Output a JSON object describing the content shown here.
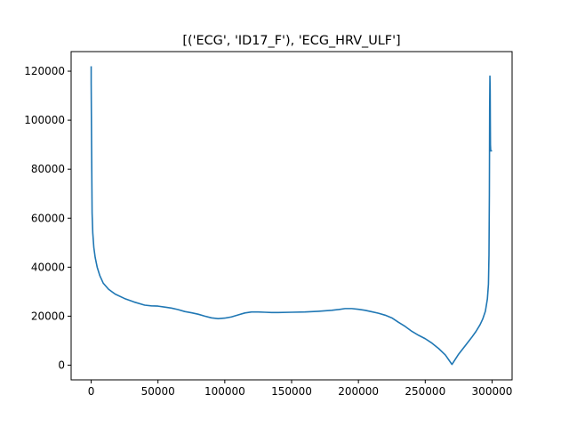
{
  "chart_data": {
    "type": "line",
    "title": "[('ECG', 'ID17_F'), 'ECG_HRV_ULF']",
    "xlabel": "",
    "ylabel": "",
    "xlim": [
      -15000,
      315000
    ],
    "ylim": [
      -6000,
      128000
    ],
    "grid": false,
    "x_ticks": [
      0,
      50000,
      100000,
      150000,
      200000,
      250000,
      300000
    ],
    "x_tick_labels": [
      "0",
      "50000",
      "100000",
      "150000",
      "200000",
      "250000",
      "300000"
    ],
    "y_ticks": [
      0,
      20000,
      40000,
      60000,
      80000,
      100000,
      120000
    ],
    "y_tick_labels": [
      "0",
      "20000",
      "40000",
      "60000",
      "80000",
      "100000",
      "120000"
    ],
    "series": [
      {
        "color": "#1f77b4",
        "x": [
          0,
          0,
          300,
          700,
          1200,
          2000,
          3000,
          4500,
          6500,
          9000,
          13000,
          18000,
          25000,
          32000,
          40000,
          45000,
          50000,
          55000,
          60000,
          65000,
          70000,
          75000,
          80000,
          85000,
          90000,
          95000,
          100000,
          105000,
          110000,
          115000,
          120000,
          125000,
          130000,
          135000,
          140000,
          150000,
          160000,
          170000,
          180000,
          185000,
          190000,
          195000,
          200000,
          205000,
          210000,
          215000,
          220000,
          225000,
          230000,
          235000,
          240000,
          245000,
          250000,
          255000,
          260000,
          265000,
          270000,
          275000,
          280000,
          285000,
          288000,
          291000,
          293000,
          295000,
          296500,
          297300,
          297700,
          298000,
          298200,
          298400,
          298500,
          298600,
          298700,
          298800,
          299000,
          299300,
          300000
        ],
        "y": [
          122000,
          115000,
          90000,
          62000,
          54000,
          48000,
          44000,
          40000,
          36500,
          33500,
          31000,
          29000,
          27200,
          25800,
          24500,
          24200,
          24100,
          23700,
          23300,
          22700,
          21900,
          21400,
          20800,
          20000,
          19300,
          19000,
          19200,
          19700,
          20500,
          21300,
          21700,
          21700,
          21600,
          21500,
          21500,
          21600,
          21700,
          22000,
          22400,
          22700,
          23100,
          23100,
          22800,
          22400,
          21800,
          21200,
          20400,
          19300,
          17500,
          15800,
          13800,
          12200,
          10800,
          9000,
          6800,
          4200,
          300,
          4500,
          8000,
          11500,
          13800,
          16500,
          18800,
          22000,
          27000,
          33000,
          45000,
          70000,
          105000,
          118000,
          115000,
          112000,
          100000,
          90000,
          87500,
          87500,
          87500
        ]
      }
    ]
  }
}
